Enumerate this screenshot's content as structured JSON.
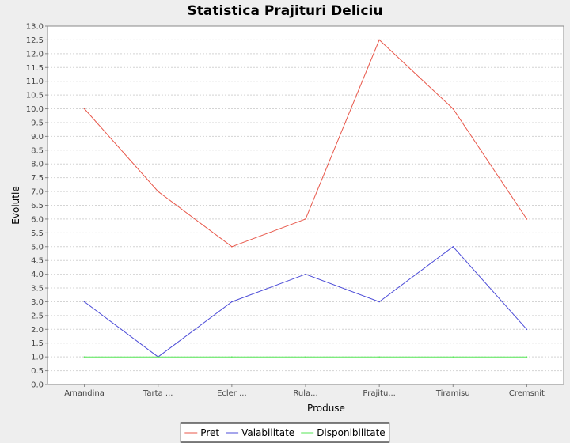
{
  "chart_data": {
    "type": "line",
    "title": "Statistica Prajituri Deliciu",
    "xlabel": "Produse",
    "ylabel": "Evolutie",
    "categories": [
      "Amandina",
      "Tarta ...",
      "Ecler ...",
      "Rula...",
      "Prajitu...",
      "Tiramisu",
      "Cremsnit"
    ],
    "series": [
      {
        "name": "Pret",
        "color": "#e8574a",
        "values": [
          10,
          7,
          5,
          6,
          12.5,
          10,
          6
        ]
      },
      {
        "name": "Valabilitate",
        "color": "#4e4ed8",
        "values": [
          3,
          1,
          3,
          4,
          3,
          5,
          2
        ]
      },
      {
        "name": "Disponibilitate",
        "color": "#55e655",
        "values": [
          1,
          1,
          1,
          1,
          1,
          1,
          1
        ]
      }
    ],
    "ylim": [
      0,
      13
    ],
    "yticks": [
      "0.0",
      "0.5",
      "1.0",
      "1.5",
      "2.0",
      "2.5",
      "3.0",
      "3.5",
      "4.0",
      "4.5",
      "5.0",
      "5.5",
      "6.0",
      "6.5",
      "7.0",
      "7.5",
      "8.0",
      "8.5",
      "9.0",
      "9.5",
      "10.0",
      "10.5",
      "11.0",
      "11.5",
      "12.0",
      "12.5",
      "13.0"
    ],
    "grid": true,
    "legend": "bottom-center"
  }
}
